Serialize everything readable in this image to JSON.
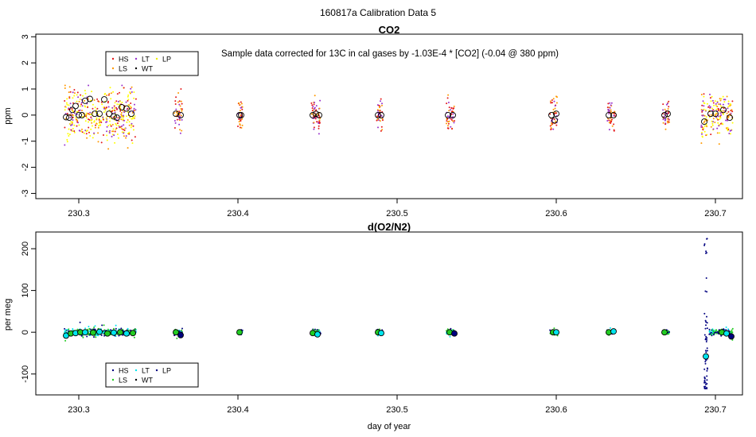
{
  "figure_title": "160817a   Calibration Data 5",
  "legend_labels": [
    "HS",
    "LS",
    "LT",
    "WT",
    "LP"
  ],
  "colors": {
    "HS": "#e41a1c",
    "LS": "#ff9900",
    "LT": "#9932cc",
    "WT": "#000000",
    "LP": "#ffff00",
    "o2_HS": "#000080",
    "o2_LS": "#22cc22",
    "o2_LT": "#00e5ee",
    "o2_WT": "#000000",
    "o2_LP": "#000080"
  },
  "chart_data": [
    {
      "type": "scatter",
      "title": "CO2",
      "annotation": "Sample data corrected for 13C in cal gases by -1.03E-4 * [CO2] (-0.04 @ 380 ppm)",
      "xlabel": "",
      "ylabel": "ppm",
      "xlim": [
        230.273,
        230.717
      ],
      "ylim": [
        -3.2,
        3.1
      ],
      "x_ticks": [
        230.3,
        230.4,
        230.5,
        230.6,
        230.7
      ],
      "x_tick_labels": [
        "230.3",
        "230.4",
        "230.5",
        "230.6",
        "230.7"
      ],
      "y_ticks": [
        -3,
        -2,
        -1,
        0,
        1,
        2,
        3
      ],
      "y_tick_labels": [
        "-3",
        "-2",
        "-1",
        "0",
        "1",
        "2",
        "3"
      ],
      "legend": "top-left",
      "clusters": [
        {
          "start": 230.291,
          "end": 230.336,
          "spread": 1.3
        },
        {
          "start": 230.36,
          "end": 230.365,
          "spread": 0.9
        },
        {
          "start": 230.4,
          "end": 230.403,
          "spread": 0.8
        },
        {
          "start": 230.446,
          "end": 230.452,
          "spread": 0.9
        },
        {
          "start": 230.487,
          "end": 230.491,
          "spread": 0.8
        },
        {
          "start": 230.531,
          "end": 230.536,
          "spread": 0.8
        },
        {
          "start": 230.596,
          "end": 230.601,
          "spread": 0.9
        },
        {
          "start": 230.632,
          "end": 230.637,
          "spread": 0.8
        },
        {
          "start": 230.667,
          "end": 230.671,
          "spread": 0.7
        },
        {
          "start": 230.691,
          "end": 230.711,
          "spread": 1.1
        }
      ],
      "means": [
        {
          "x": 230.292,
          "y": -0.08
        },
        {
          "x": 230.294,
          "y": -0.1
        },
        {
          "x": 230.296,
          "y": 0.2
        },
        {
          "x": 230.298,
          "y": 0.35
        },
        {
          "x": 230.3,
          "y": 0.0
        },
        {
          "x": 230.302,
          "y": 0.0
        },
        {
          "x": 230.304,
          "y": 0.55
        },
        {
          "x": 230.307,
          "y": 0.62
        },
        {
          "x": 230.31,
          "y": 0.05
        },
        {
          "x": 230.313,
          "y": 0.05
        },
        {
          "x": 230.316,
          "y": 0.6
        },
        {
          "x": 230.319,
          "y": 0.05
        },
        {
          "x": 230.322,
          "y": -0.05
        },
        {
          "x": 230.324,
          "y": -0.1
        },
        {
          "x": 230.327,
          "y": 0.3
        },
        {
          "x": 230.33,
          "y": 0.25
        },
        {
          "x": 230.333,
          "y": 0.05
        },
        {
          "x": 230.361,
          "y": 0.05
        },
        {
          "x": 230.364,
          "y": 0.0
        },
        {
          "x": 230.401,
          "y": 0.0
        },
        {
          "x": 230.402,
          "y": 0.0
        },
        {
          "x": 230.447,
          "y": 0.0
        },
        {
          "x": 230.449,
          "y": 0.05
        },
        {
          "x": 230.451,
          "y": 0.0
        },
        {
          "x": 230.488,
          "y": 0.0
        },
        {
          "x": 230.49,
          "y": 0.0
        },
        {
          "x": 230.532,
          "y": 0.0
        },
        {
          "x": 230.535,
          "y": 0.0
        },
        {
          "x": 230.597,
          "y": 0.0
        },
        {
          "x": 230.599,
          "y": -0.2
        },
        {
          "x": 230.6,
          "y": 0.05
        },
        {
          "x": 230.633,
          "y": 0.0
        },
        {
          "x": 230.636,
          "y": 0.0
        },
        {
          "x": 230.668,
          "y": 0.0
        },
        {
          "x": 230.67,
          "y": 0.05
        },
        {
          "x": 230.693,
          "y": -0.25
        },
        {
          "x": 230.697,
          "y": 0.05
        },
        {
          "x": 230.7,
          "y": 0.05
        },
        {
          "x": 230.705,
          "y": 0.2
        },
        {
          "x": 230.709,
          "y": -0.1
        }
      ]
    },
    {
      "type": "scatter",
      "title": "d(O2/N2)",
      "xlabel": "day of year",
      "ylabel": "per meg",
      "xlim": [
        230.273,
        230.717
      ],
      "ylim": [
        -150,
        240
      ],
      "x_ticks": [
        230.3,
        230.4,
        230.5,
        230.6,
        230.7
      ],
      "x_tick_labels": [
        "230.3",
        "230.4",
        "230.5",
        "230.6",
        "230.7"
      ],
      "y_ticks": [
        -100,
        0,
        100,
        200
      ],
      "y_tick_labels": [
        "-100",
        "0",
        "100",
        "200"
      ],
      "legend": "bottom-left",
      "clusters": [
        {
          "start": 230.291,
          "end": 230.336,
          "spread": 6
        },
        {
          "start": 230.36,
          "end": 230.365,
          "spread": 4
        },
        {
          "start": 230.4,
          "end": 230.403,
          "spread": 4
        },
        {
          "start": 230.446,
          "end": 230.452,
          "spread": 6
        },
        {
          "start": 230.487,
          "end": 230.491,
          "spread": 5
        },
        {
          "start": 230.531,
          "end": 230.536,
          "spread": 4
        },
        {
          "start": 230.596,
          "end": 230.601,
          "spread": 5
        },
        {
          "start": 230.632,
          "end": 230.637,
          "spread": 5
        },
        {
          "start": 230.667,
          "end": 230.671,
          "spread": 4
        },
        {
          "start": 230.696,
          "end": 230.711,
          "spread": 5
        }
      ],
      "spike": {
        "x": 230.694,
        "y_min": -135,
        "y_max": 228
      },
      "means": [
        {
          "x": 230.292,
          "y": -8,
          "c": "o2_LT"
        },
        {
          "x": 230.295,
          "y": -3,
          "c": "o2_LS"
        },
        {
          "x": 230.298,
          "y": -2,
          "c": "o2_LT"
        },
        {
          "x": 230.301,
          "y": 0,
          "c": "o2_LS"
        },
        {
          "x": 230.304,
          "y": 0,
          "c": "o2_LT"
        },
        {
          "x": 230.309,
          "y": -1,
          "c": "o2_LS"
        },
        {
          "x": 230.313,
          "y": 1,
          "c": "o2_LT"
        },
        {
          "x": 230.318,
          "y": -3,
          "c": "o2_LS"
        },
        {
          "x": 230.322,
          "y": -1,
          "c": "o2_LT"
        },
        {
          "x": 230.326,
          "y": 0,
          "c": "o2_LS"
        },
        {
          "x": 230.33,
          "y": -3,
          "c": "o2_LT"
        },
        {
          "x": 230.334,
          "y": -2,
          "c": "o2_LS"
        },
        {
          "x": 230.361,
          "y": 0,
          "c": "o2_LS"
        },
        {
          "x": 230.364,
          "y": -7,
          "c": "o2_HS"
        },
        {
          "x": 230.401,
          "y": 0,
          "c": "o2_LS"
        },
        {
          "x": 230.447,
          "y": -2,
          "c": "o2_LS"
        },
        {
          "x": 230.45,
          "y": -5,
          "c": "o2_LT"
        },
        {
          "x": 230.488,
          "y": 0,
          "c": "o2_LS"
        },
        {
          "x": 230.49,
          "y": -2,
          "c": "o2_LT"
        },
        {
          "x": 230.533,
          "y": 0,
          "c": "o2_LS"
        },
        {
          "x": 230.536,
          "y": -3,
          "c": "o2_HS"
        },
        {
          "x": 230.598,
          "y": 0,
          "c": "o2_LS"
        },
        {
          "x": 230.6,
          "y": 0,
          "c": "o2_LT"
        },
        {
          "x": 230.633,
          "y": 0,
          "c": "o2_LS"
        },
        {
          "x": 230.636,
          "y": 2,
          "c": "o2_LT"
        },
        {
          "x": 230.668,
          "y": 0,
          "c": "o2_LS"
        },
        {
          "x": 230.694,
          "y": -58,
          "c": "o2_LT"
        },
        {
          "x": 230.704,
          "y": 0,
          "c": "o2_LS"
        },
        {
          "x": 230.707,
          "y": -3,
          "c": "o2_LT"
        },
        {
          "x": 230.71,
          "y": -10,
          "c": "o2_HS"
        }
      ]
    }
  ]
}
